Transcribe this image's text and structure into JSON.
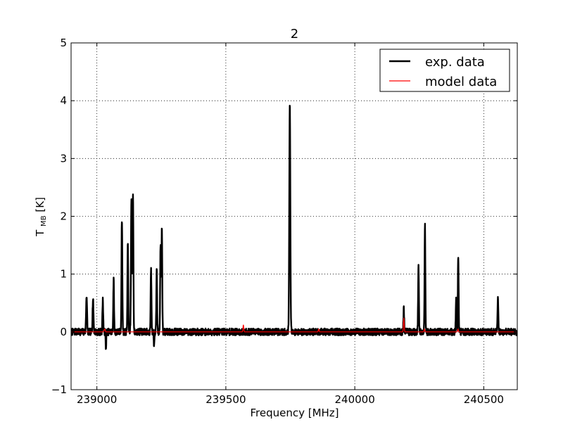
{
  "chart_data": {
    "type": "line",
    "title": "2",
    "xlabel": "Frequency [MHz]",
    "ylabel_main": "T",
    "ylabel_sub": "MB",
    "ylabel_unit": " [K]",
    "xlim": [
      238900,
      240630
    ],
    "ylim": [
      -1,
      5
    ],
    "grid": true,
    "grid_style": "dotted",
    "legend_position": "top-right",
    "x_ticks": [
      239000,
      239500,
      240000,
      240500
    ],
    "x_tick_labels": [
      "239000",
      "239500",
      "240000",
      "240500"
    ],
    "y_ticks": [
      -1,
      0,
      1,
      2,
      3,
      4,
      5
    ],
    "y_tick_labels": [
      "−1",
      "0",
      "1",
      "2",
      "3",
      "4",
      "5"
    ],
    "series": [
      {
        "name": "exp. data",
        "color": "#000000",
        "baseline_noise": 0.06,
        "noise_seed": 7,
        "peaks": [
          {
            "x": 238960,
            "y": 0.64,
            "w": 1.8
          },
          {
            "x": 238985,
            "y": 0.56,
            "w": 1.8
          },
          {
            "x": 239023,
            "y": 0.55,
            "w": 1.5
          },
          {
            "x": 239065,
            "y": 0.9,
            "w": 1.5
          },
          {
            "x": 239097,
            "y": 1.97,
            "w": 1.6
          },
          {
            "x": 239120,
            "y": 1.56,
            "w": 1.5
          },
          {
            "x": 239134,
            "y": 2.33,
            "w": 1.8
          },
          {
            "x": 239140,
            "y": 2.4,
            "w": 1.6
          },
          {
            "x": 239210,
            "y": 1.08,
            "w": 1.5
          },
          {
            "x": 239232,
            "y": 1.08,
            "w": 1.5
          },
          {
            "x": 239247,
            "y": 1.52,
            "w": 1.6
          },
          {
            "x": 239252,
            "y": 1.78,
            "w": 1.5
          },
          {
            "x": 239748,
            "y": 3.95,
            "w": 2.0
          },
          {
            "x": 240190,
            "y": 0.39,
            "w": 1.5
          },
          {
            "x": 240247,
            "y": 1.14,
            "w": 1.5
          },
          {
            "x": 240272,
            "y": 1.85,
            "w": 1.5
          },
          {
            "x": 240393,
            "y": 0.6,
            "w": 1.5
          },
          {
            "x": 240401,
            "y": 1.33,
            "w": 1.5
          },
          {
            "x": 240555,
            "y": 0.57,
            "w": 1.5
          }
        ],
        "dips": [
          {
            "x": 239035,
            "y": -0.29,
            "w": 1.2
          },
          {
            "x": 239222,
            "y": -0.27,
            "w": 1.2
          }
        ]
      },
      {
        "name": "model data",
        "color": "#ff0000",
        "baseline_noise": 0,
        "noise_seed": 3,
        "peaks": [
          {
            "x": 239030,
            "y": 0.05,
            "w": 2.0
          },
          {
            "x": 239568,
            "y": 0.12,
            "w": 1.5
          },
          {
            "x": 239860,
            "y": 0.05,
            "w": 1.5
          },
          {
            "x": 240190,
            "y": 0.24,
            "w": 1.5
          },
          {
            "x": 240270,
            "y": 0.05,
            "w": 1.5
          },
          {
            "x": 240400,
            "y": 0.05,
            "w": 1.5
          }
        ],
        "dips": []
      }
    ]
  }
}
